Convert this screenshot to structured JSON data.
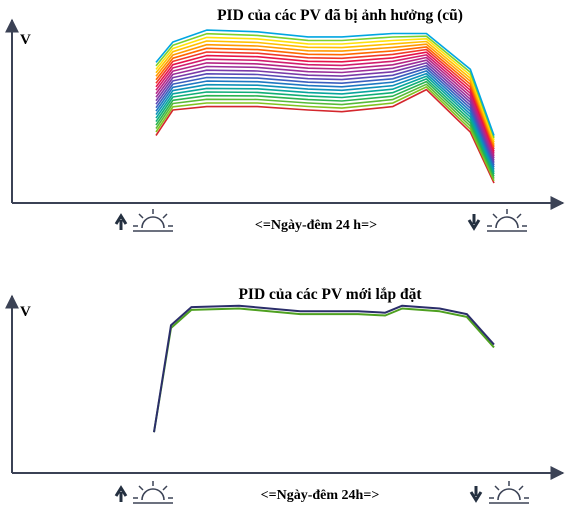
{
  "chart_data": [
    {
      "type": "line",
      "title": "PID của các PV đã bị ảnh hưởng (cũ)",
      "ylabel": "V",
      "xlabel": "<=Ngày-đêm 24 h=>",
      "grid": false,
      "series_count": 22,
      "x": [
        0,
        0.05,
        0.15,
        0.3,
        0.45,
        0.55,
        0.7,
        0.8,
        0.93,
        1.0
      ],
      "top_curve": [
        0.78,
        0.9,
        0.97,
        0.96,
        0.93,
        0.93,
        0.95,
        0.95,
        0.74,
        0.35
      ],
      "bottom_curve": [
        0.35,
        0.5,
        0.52,
        0.52,
        0.5,
        0.49,
        0.52,
        0.62,
        0.37,
        0.07
      ],
      "colors": [
        "#00a6e0",
        "#7fd02a",
        "#ffe10a",
        "#ffc000",
        "#ff9900",
        "#ff6600",
        "#f0382a",
        "#e6134a",
        "#d11d6e",
        "#b52584",
        "#9b2e99",
        "#7a3aa8",
        "#5b49b5",
        "#3a5fbe",
        "#1e78c2",
        "#0e90b8",
        "#08a59c",
        "#0fae77",
        "#2ab350",
        "#58bb37",
        "#82c31f",
        "#d4262c"
      ]
    },
    {
      "type": "line",
      "title": "PID của các PV mới lắp đặt",
      "ylabel": "V",
      "xlabel": "<=Ngày-đêm 24h=>",
      "grid": false,
      "x": [
        0,
        0.05,
        0.11,
        0.25,
        0.43,
        0.6,
        0.68,
        0.73,
        0.84,
        0.92,
        1.0
      ],
      "series": [
        {
          "color": "#4ea020",
          "values": [
            0.02,
            0.77,
            0.9,
            0.91,
            0.87,
            0.87,
            0.86,
            0.91,
            0.89,
            0.85,
            0.63
          ]
        },
        {
          "color": "#2b2e6a",
          "values": [
            0.02,
            0.79,
            0.92,
            0.93,
            0.89,
            0.89,
            0.88,
            0.93,
            0.91,
            0.87,
            0.65
          ]
        }
      ]
    }
  ],
  "icons": {
    "sunrise": "sunrise-icon",
    "sunset": "sunset-icon"
  }
}
